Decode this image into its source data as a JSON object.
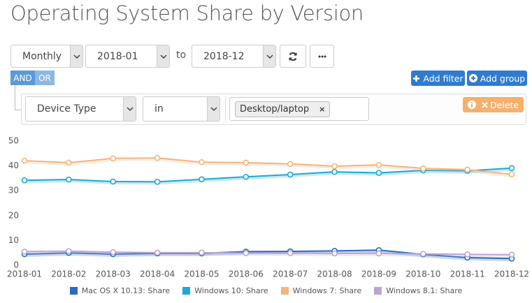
{
  "header": {
    "title": "Operating System Share by Version"
  },
  "toolbar": {
    "period": "Monthly",
    "from": "2018-01",
    "to_label": "to",
    "to": "2018-12"
  },
  "filters": {
    "and": "AND",
    "or": "OR",
    "add_filter": "Add filter",
    "add_group": "Add group",
    "rule": {
      "field": "Device Type",
      "operator": "in",
      "value": "Desktop/laptop",
      "remove": "×",
      "delete": "Delete"
    }
  },
  "chart_data": {
    "type": "line",
    "categories": [
      "2018-01",
      "2018-02",
      "2018-03",
      "2018-04",
      "2018-05",
      "2018-06",
      "2018-07",
      "2018-08",
      "2018-09",
      "2018-10",
      "2018-11",
      "2018-12"
    ],
    "series": [
      {
        "name": "Mac OS X 10.13: Share",
        "color": "#2a6cbf",
        "values": [
          4.5,
          5.0,
          4.5,
          4.8,
          4.8,
          5.5,
          5.6,
          5.8,
          6.1,
          4.4,
          3.1,
          2.7
        ]
      },
      {
        "name": "Windows 10: Share",
        "color": "#1ea8dc",
        "values": [
          34.2,
          34.5,
          33.7,
          33.6,
          34.6,
          35.6,
          36.5,
          37.6,
          37.2,
          38.2,
          38.0,
          39.1
        ]
      },
      {
        "name": "Windows 7: Share",
        "color": "#f4b57d",
        "values": [
          42.1,
          41.3,
          43.0,
          43.2,
          41.5,
          41.3,
          40.8,
          39.9,
          40.4,
          39.0,
          38.5,
          36.6
        ]
      },
      {
        "name": "Windows 8.1: Share",
        "color": "#b9a5d3",
        "values": [
          5.5,
          5.7,
          5.3,
          5.1,
          5.1,
          4.9,
          4.9,
          4.8,
          4.8,
          4.6,
          4.4,
          4.3
        ]
      }
    ],
    "ylim": [
      0,
      50
    ],
    "yticks": [
      0,
      10,
      20,
      30,
      40,
      50
    ],
    "grid": false,
    "legend": "bottom"
  }
}
